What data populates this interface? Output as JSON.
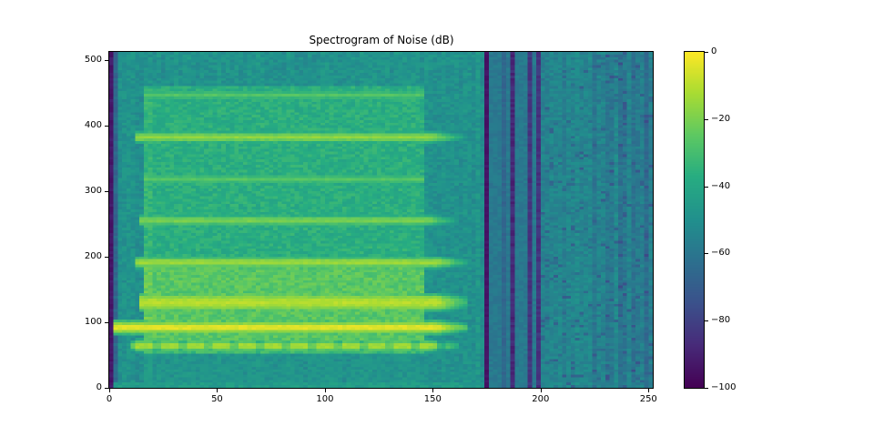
{
  "chart_data": {
    "type": "heatmap",
    "subtype": "spectrogram",
    "title": "Spectrogram of Noise (dB)",
    "xlabel": "",
    "ylabel": "",
    "xlim": [
      0,
      252
    ],
    "ylim": [
      0,
      512
    ],
    "xticks": [
      0,
      50,
      100,
      150,
      200,
      250
    ],
    "xtick_labels": [
      "0",
      "50",
      "100",
      "150",
      "200",
      "250"
    ],
    "yticks": [
      0,
      100,
      200,
      300,
      400,
      500
    ],
    "ytick_labels": [
      "0",
      "100",
      "200",
      "300",
      "400",
      "500"
    ],
    "grid": false,
    "colormap": "viridis",
    "colorbar": {
      "clim": [
        -100,
        0
      ],
      "ticks": [
        0,
        -20,
        -40,
        -60,
        -80,
        -100
      ],
      "tick_labels": [
        "0",
        "−20",
        "−40",
        "−60",
        "−80",
        "−100"
      ],
      "position": "right"
    },
    "features": {
      "units": "dB",
      "left_edge_column": {
        "t": [
          0,
          2
        ],
        "db": -93
      },
      "background_left_db": -49,
      "background_right_db": -56,
      "signal_time_range": [
        16,
        146
      ],
      "signal_broadband": [
        {
          "freq": [
            185,
            462
          ],
          "db": -37
        },
        {
          "freq": [
            72,
            185
          ],
          "db": -26
        },
        {
          "freq": [
            52,
            72
          ],
          "db": -32
        },
        {
          "freq": [
            10,
            52
          ],
          "db": -50
        }
      ],
      "harmonic_lines": [
        {
          "freq": 446,
          "db": -27,
          "t": [
            17,
            146
          ]
        },
        {
          "freq": 382,
          "db": -16,
          "t": [
            13,
            150
          ]
        },
        {
          "freq": 318,
          "db": -26,
          "t": [
            17,
            146
          ]
        },
        {
          "freq": 255,
          "db": -20,
          "t": [
            15,
            148
          ]
        },
        {
          "freq": 191,
          "db": -14,
          "t": [
            13,
            152
          ]
        },
        {
          "freq": 130,
          "db": -10,
          "t": [
            14,
            152
          ],
          "width": 2
        },
        {
          "freq": 92,
          "db": -3,
          "t": [
            2,
            152
          ]
        },
        {
          "freq": 64,
          "db": -12,
          "t": [
            10,
            148
          ],
          "dashed": true
        }
      ],
      "dark_stripes_t": [
        [
          174.5,
          177
        ],
        [
          185.5,
          187.5
        ],
        [
          194,
          196.5
        ],
        [
          199,
          200.5
        ]
      ],
      "quiet_blue_band_t": [
        177,
        200.5
      ],
      "noisy_dark_region_t": [
        200.5,
        252
      ]
    }
  }
}
